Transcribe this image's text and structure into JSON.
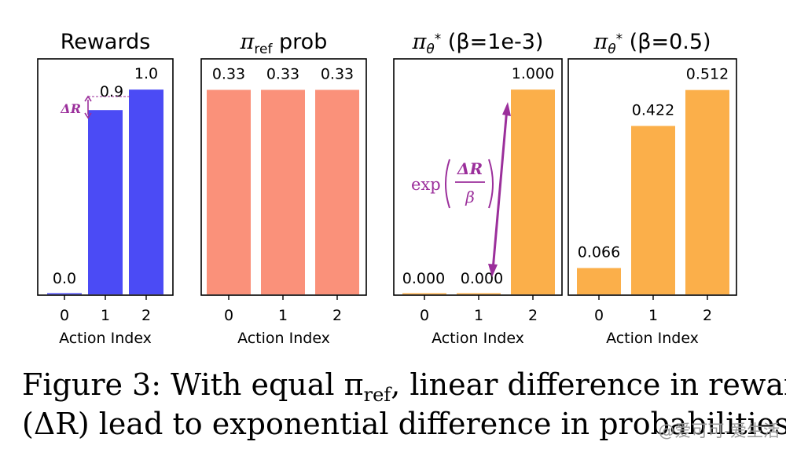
{
  "chart_data": [
    {
      "type": "bar",
      "title": "Rewards",
      "xlabel": "Action Index",
      "categories": [
        "0",
        "1",
        "2"
      ],
      "values": [
        0.0,
        0.9,
        1.0
      ],
      "value_labels": [
        "0.0",
        "0.9",
        "1.0"
      ],
      "ylim": [
        0,
        1.15
      ],
      "color": "#4b4bf5",
      "annotation": {
        "text": "ΔR",
        "color": "#9b2f9b"
      }
    },
    {
      "type": "bar",
      "title": "πref prob",
      "title_main": "π",
      "title_sub": "ref",
      "title_rest": " prob",
      "xlabel": "Action Index",
      "categories": [
        "0",
        "1",
        "2"
      ],
      "values": [
        0.33,
        0.33,
        0.33
      ],
      "value_labels": [
        "0.33",
        "0.33",
        "0.33"
      ],
      "ylim": [
        0,
        0.38
      ],
      "color": "#fa917a"
    },
    {
      "type": "bar",
      "title": "πθ* (β=1e-3)",
      "title_main": "π",
      "title_sub": "θ",
      "title_sup": "*",
      "title_rest": " (β=1e-3)",
      "xlabel": "Action Index",
      "categories": [
        "0",
        "1",
        "2"
      ],
      "values": [
        0.0,
        0.0,
        1.0
      ],
      "value_labels": [
        "0.000",
        "0.000",
        "1.000"
      ],
      "ylim": [
        0,
        1.15
      ],
      "color": "#fbaf4a",
      "annotation": {
        "text": "exp(ΔR/β)",
        "prefix": "exp",
        "numerator": "ΔR",
        "denominator": "β",
        "color": "#9b2f9b"
      }
    },
    {
      "type": "bar",
      "title": "πθ* (β=0.5)",
      "title_main": "π",
      "title_sub": "θ",
      "title_sup": "*",
      "title_rest": " (β=0.5)",
      "xlabel": "Action Index",
      "categories": [
        "0",
        "1",
        "2"
      ],
      "values": [
        0.066,
        0.422,
        0.512
      ],
      "value_labels": [
        "0.066",
        "0.422",
        "0.512"
      ],
      "ylim": [
        0,
        0.59
      ],
      "color": "#fbaf4a"
    }
  ],
  "caption": {
    "text": "Figure 3: With equal πref, linear difference in rewards (ΔR) lead to exponential difference in probabilities",
    "line1_a": "Figure 3: With equal π",
    "line1_sub": "ref",
    "line1_b": ", linear difference in rewards",
    "line2": "(ΔR) lead to exponential difference in probabilities"
  },
  "watermark": "@爱可可-爱生活"
}
